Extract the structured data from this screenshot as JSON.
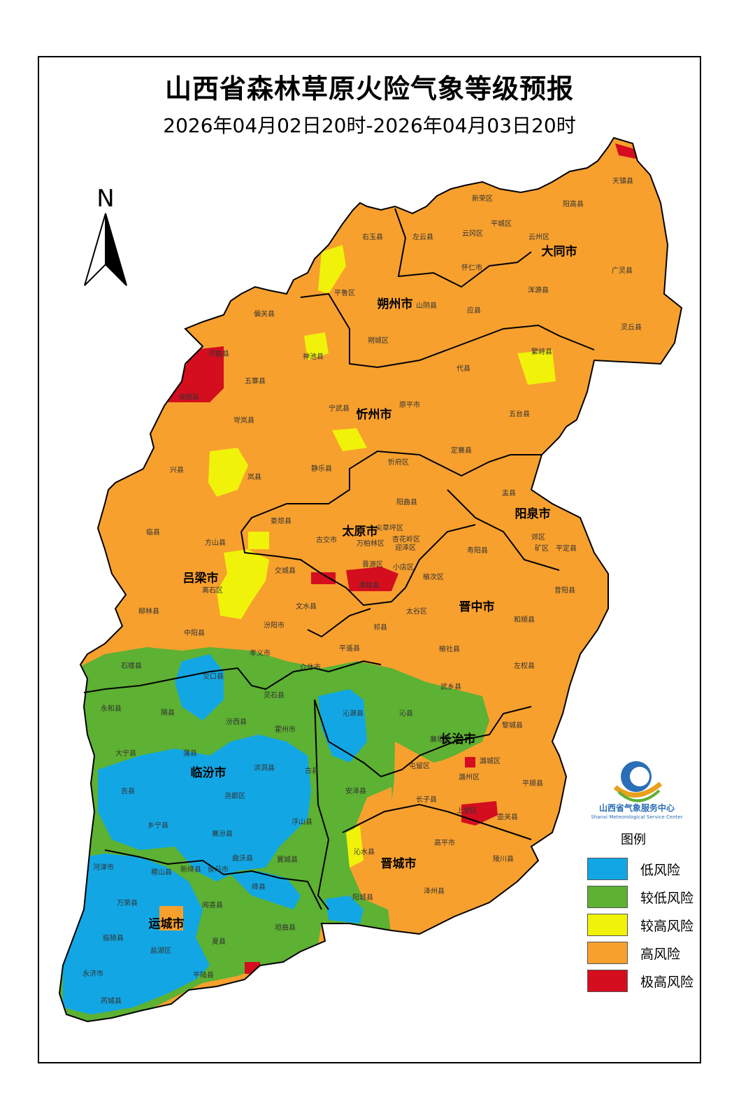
{
  "title": "山西省森林草原火险气象等级预报",
  "subtitle": "2026年04月02日20时-2026年04月03日20时",
  "north_label": "N",
  "legend": {
    "title": "图例",
    "items": [
      {
        "label": "低风险",
        "color": "#12a7e4"
      },
      {
        "label": "较低风险",
        "color": "#5db133"
      },
      {
        "label": "较高风险",
        "color": "#f0f20a"
      },
      {
        "label": "高风险",
        "color": "#f7a02e"
      },
      {
        "label": "极高风险",
        "color": "#d40d1f"
      }
    ]
  },
  "logo": {
    "cn": "山西省气象服务中心",
    "en": "Shanxi Meteorological Service Center"
  },
  "cities": [
    "大同市",
    "朔州市",
    "忻州市",
    "太原市",
    "阳泉市",
    "吕梁市",
    "晋中市",
    "长治市",
    "临汾市",
    "晋城市",
    "运城市"
  ],
  "counties": [
    "天镇县",
    "新荣区",
    "阳高县",
    "左云县",
    "云冈区",
    "平城区",
    "云州区",
    "右玉县",
    "大同市",
    "广灵县",
    "怀仁市",
    "浑源县",
    "平鲁区",
    "山阴县",
    "应县",
    "灵丘县",
    "偏关县",
    "神池县",
    "朔城区",
    "繁峙县",
    "河曲县",
    "五寨县",
    "代县",
    "保德县",
    "宁武县",
    "原平市",
    "五台县",
    "岢岚县",
    "兴县",
    "岚县",
    "静乐县",
    "忻府区",
    "定襄县",
    "阳曲县",
    "盂县",
    "娄烦县",
    "尖草坪区",
    "古交市",
    "万柏林区",
    "杏花岭区",
    "迎泽区",
    "郊区",
    "矿区",
    "平定县",
    "临县",
    "方山县",
    "晋源区",
    "小店区",
    "交城县",
    "清徐县",
    "寿阳县",
    "离石区",
    "文水县",
    "榆次区",
    "昔阳县",
    "柳林县",
    "汾阳市",
    "太谷区",
    "和顺县",
    "中阳县",
    "祁县",
    "孝义市",
    "平遥县",
    "榆社县",
    "左权县",
    "石楼县",
    "交口县",
    "介休市",
    "武乡县",
    "灵石县",
    "永和县",
    "隰县",
    "沁源县",
    "沁县",
    "黎城县",
    "汾西县",
    "霍州市",
    "襄垣县",
    "大宁县",
    "蒲县",
    "屯留区",
    "潞城区",
    "洪洞县",
    "古县",
    "潞州区",
    "吉县",
    "安泽县",
    "平顺县",
    "长子县",
    "尧都区",
    "上党区",
    "壶关县",
    "乡宁县",
    "襄汾县",
    "浮山县",
    "高平市",
    "沁水县",
    "曲沃县",
    "翼城县",
    "陵川县",
    "河津市",
    "稷山县",
    "新绛县",
    "侯马市",
    "绛县",
    "万荣县",
    "闻喜县",
    "阳城县",
    "泽州县",
    "运城市",
    "临猗县",
    "夏县",
    "垣曲县",
    "盐湖区",
    "永济市",
    "平陆县",
    "芮城县"
  ]
}
